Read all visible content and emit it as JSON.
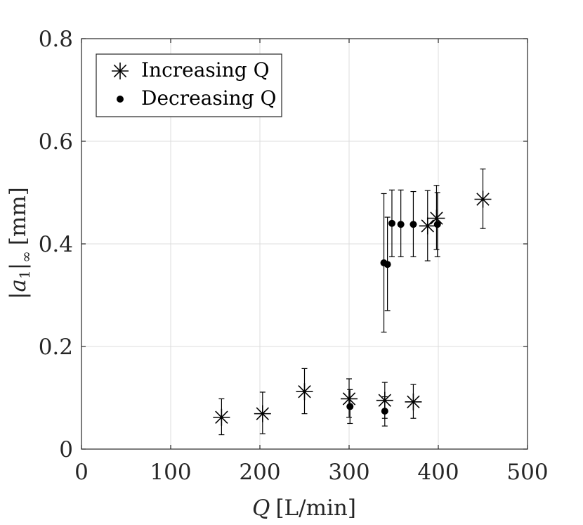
{
  "chart_data": {
    "type": "scatter",
    "title": "",
    "xlabel_var": "Q",
    "xlabel_unit": "[L/min]",
    "ylabel_var": "a",
    "ylabel_sub": "1",
    "ylabel_infty": "∞",
    "ylabel_unit": "[mm]",
    "xlim": [
      0,
      500
    ],
    "ylim": [
      0,
      0.8
    ],
    "xticks": [
      0,
      100,
      200,
      300,
      400,
      500
    ],
    "xtick_labels": [
      "0",
      "100",
      "200",
      "300",
      "400",
      "500"
    ],
    "yticks": [
      0,
      0.2,
      0.4,
      0.6,
      0.8
    ],
    "ytick_labels": [
      "0",
      "0.2",
      "0.4",
      "0.6",
      "0.8"
    ],
    "grid": true,
    "legend_position": "top-left",
    "series": [
      {
        "name": "Increasing Q",
        "marker": "asterisk",
        "x": [
          157,
          203,
          250,
          300,
          340,
          372,
          388,
          398,
          450
        ],
        "y": [
          0.062,
          0.069,
          0.112,
          0.098,
          0.095,
          0.092,
          0.435,
          0.45,
          0.487
        ],
        "ylow": [
          0.028,
          0.03,
          0.069,
          0.062,
          0.06,
          0.06,
          0.367,
          0.389,
          0.43
        ],
        "yhigh": [
          0.098,
          0.111,
          0.157,
          0.137,
          0.13,
          0.126,
          0.504,
          0.514,
          0.546
        ]
      },
      {
        "name": "Decreasing Q",
        "marker": "dot",
        "x": [
          339,
          343,
          348,
          358,
          372,
          399,
          301,
          340
        ],
        "y": [
          0.363,
          0.36,
          0.44,
          0.438,
          0.438,
          0.438,
          0.083,
          0.074
        ],
        "ylow": [
          0.228,
          0.27,
          0.375,
          0.375,
          0.375,
          0.375,
          0.05,
          0.045
        ],
        "yhigh": [
          0.498,
          0.452,
          0.505,
          0.505,
          0.502,
          0.5,
          0.116,
          0.102
        ]
      }
    ]
  }
}
